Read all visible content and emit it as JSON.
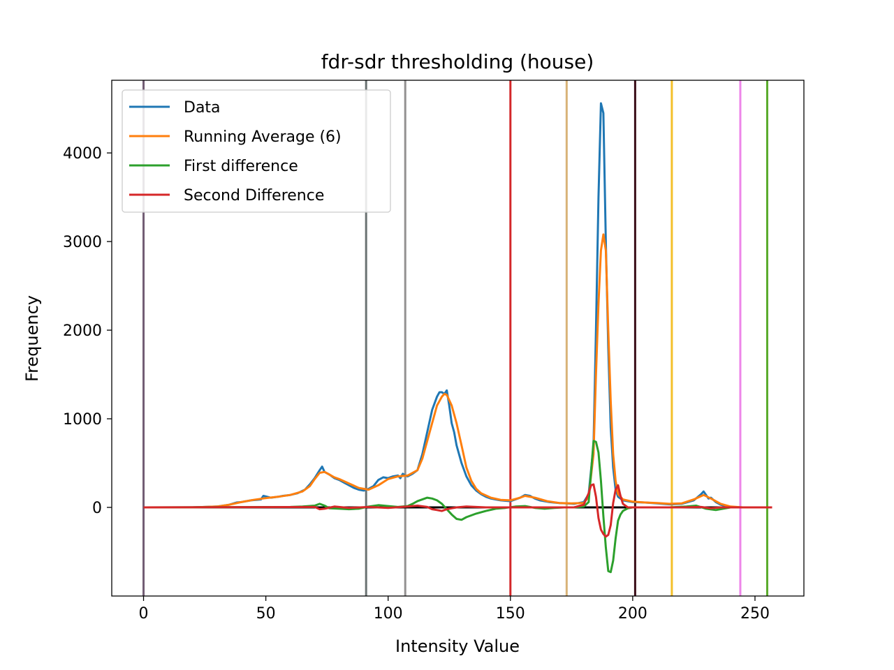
{
  "chart_data": {
    "type": "line",
    "title": "fdr-sdr thresholding (house)",
    "xlabel": "Intensity Value",
    "ylabel": "Frequency",
    "xlim": [
      -13,
      270
    ],
    "ylim": [
      -1000,
      4820
    ],
    "xticks": [
      0,
      50,
      100,
      150,
      200,
      250
    ],
    "yticks": [
      0,
      1000,
      2000,
      3000,
      4000
    ],
    "grid": false,
    "legend_position": "top-left",
    "series": [
      {
        "name": "Data",
        "color": "#1f77b4",
        "points": [
          [
            0,
            0
          ],
          [
            20,
            0
          ],
          [
            30,
            10
          ],
          [
            35,
            30
          ],
          [
            38,
            55
          ],
          [
            40,
            60
          ],
          [
            44,
            80
          ],
          [
            48,
            90
          ],
          [
            49,
            130
          ],
          [
            52,
            110
          ],
          [
            55,
            120
          ],
          [
            57,
            130
          ],
          [
            60,
            140
          ],
          [
            63,
            160
          ],
          [
            66,
            200
          ],
          [
            68,
            260
          ],
          [
            70,
            330
          ],
          [
            72,
            420
          ],
          [
            73,
            460
          ],
          [
            74,
            400
          ],
          [
            76,
            370
          ],
          [
            78,
            330
          ],
          [
            80,
            310
          ],
          [
            82,
            280
          ],
          [
            84,
            250
          ],
          [
            86,
            220
          ],
          [
            88,
            200
          ],
          [
            90,
            190
          ],
          [
            92,
            210
          ],
          [
            94,
            240
          ],
          [
            96,
            310
          ],
          [
            98,
            340
          ],
          [
            100,
            330
          ],
          [
            102,
            350
          ],
          [
            104,
            360
          ],
          [
            105,
            330
          ],
          [
            106,
            380
          ],
          [
            107,
            360
          ],
          [
            108,
            350
          ],
          [
            110,
            380
          ],
          [
            112,
            420
          ],
          [
            114,
            600
          ],
          [
            116,
            850
          ],
          [
            118,
            1100
          ],
          [
            120,
            1250
          ],
          [
            121,
            1300
          ],
          [
            122,
            1300
          ],
          [
            123,
            1280
          ],
          [
            124,
            1320
          ],
          [
            125,
            1150
          ],
          [
            126,
            950
          ],
          [
            127,
            850
          ],
          [
            128,
            700
          ],
          [
            130,
            500
          ],
          [
            132,
            350
          ],
          [
            134,
            250
          ],
          [
            136,
            190
          ],
          [
            138,
            150
          ],
          [
            140,
            120
          ],
          [
            142,
            100
          ],
          [
            144,
            90
          ],
          [
            146,
            80
          ],
          [
            148,
            75
          ],
          [
            150,
            70
          ],
          [
            152,
            90
          ],
          [
            154,
            110
          ],
          [
            156,
            140
          ],
          [
            158,
            130
          ],
          [
            160,
            100
          ],
          [
            162,
            80
          ],
          [
            166,
            60
          ],
          [
            170,
            50
          ],
          [
            173,
            45
          ],
          [
            176,
            40
          ],
          [
            178,
            50
          ],
          [
            180,
            60
          ],
          [
            182,
            150
          ],
          [
            184,
            700
          ],
          [
            185,
            2000
          ],
          [
            186,
            3500
          ],
          [
            187,
            4560
          ],
          [
            188,
            4450
          ],
          [
            189,
            3000
          ],
          [
            190,
            1800
          ],
          [
            191,
            900
          ],
          [
            192,
            450
          ],
          [
            193,
            200
          ],
          [
            194,
            120
          ],
          [
            196,
            80
          ],
          [
            200,
            60
          ],
          [
            205,
            55
          ],
          [
            210,
            45
          ],
          [
            215,
            35
          ],
          [
            220,
            40
          ],
          [
            225,
            80
          ],
          [
            228,
            150
          ],
          [
            229,
            180
          ],
          [
            231,
            100
          ],
          [
            232,
            110
          ],
          [
            234,
            60
          ],
          [
            236,
            30
          ],
          [
            238,
            15
          ],
          [
            240,
            5
          ],
          [
            245,
            0
          ],
          [
            255,
            0
          ]
        ]
      },
      {
        "name": "Running Average (6)",
        "color": "#ff7f0e",
        "points": [
          [
            0,
            0
          ],
          [
            20,
            0
          ],
          [
            30,
            10
          ],
          [
            35,
            30
          ],
          [
            40,
            60
          ],
          [
            45,
            85
          ],
          [
            50,
            105
          ],
          [
            55,
            120
          ],
          [
            60,
            140
          ],
          [
            65,
            180
          ],
          [
            68,
            240
          ],
          [
            70,
            320
          ],
          [
            72,
            390
          ],
          [
            74,
            400
          ],
          [
            76,
            370
          ],
          [
            78,
            340
          ],
          [
            80,
            320
          ],
          [
            84,
            270
          ],
          [
            88,
            220
          ],
          [
            92,
            200
          ],
          [
            96,
            250
          ],
          [
            100,
            320
          ],
          [
            104,
            350
          ],
          [
            108,
            360
          ],
          [
            112,
            420
          ],
          [
            114,
            550
          ],
          [
            116,
            750
          ],
          [
            118,
            950
          ],
          [
            120,
            1150
          ],
          [
            122,
            1250
          ],
          [
            123,
            1280
          ],
          [
            124,
            1270
          ],
          [
            126,
            1150
          ],
          [
            128,
            950
          ],
          [
            130,
            700
          ],
          [
            132,
            450
          ],
          [
            134,
            300
          ],
          [
            136,
            210
          ],
          [
            138,
            160
          ],
          [
            142,
            110
          ],
          [
            146,
            85
          ],
          [
            150,
            80
          ],
          [
            154,
            110
          ],
          [
            156,
            130
          ],
          [
            160,
            110
          ],
          [
            165,
            70
          ],
          [
            170,
            50
          ],
          [
            175,
            45
          ],
          [
            180,
            50
          ],
          [
            182,
            120
          ],
          [
            184,
            600
          ],
          [
            185,
            1500
          ],
          [
            186,
            2300
          ],
          [
            187,
            2900
          ],
          [
            188,
            3080
          ],
          [
            189,
            2900
          ],
          [
            190,
            2000
          ],
          [
            191,
            1200
          ],
          [
            192,
            600
          ],
          [
            193,
            300
          ],
          [
            194,
            150
          ],
          [
            196,
            90
          ],
          [
            200,
            65
          ],
          [
            205,
            55
          ],
          [
            210,
            50
          ],
          [
            215,
            40
          ],
          [
            220,
            45
          ],
          [
            225,
            90
          ],
          [
            229,
            140
          ],
          [
            232,
            100
          ],
          [
            236,
            40
          ],
          [
            240,
            10
          ],
          [
            245,
            0
          ],
          [
            255,
            0
          ]
        ]
      },
      {
        "name": "First difference",
        "color": "#2ca02c",
        "points": [
          [
            0,
            0
          ],
          [
            60,
            5
          ],
          [
            65,
            10
          ],
          [
            70,
            20
          ],
          [
            72,
            40
          ],
          [
            74,
            20
          ],
          [
            76,
            -10
          ],
          [
            80,
            -15
          ],
          [
            84,
            -20
          ],
          [
            88,
            -15
          ],
          [
            92,
            10
          ],
          [
            96,
            25
          ],
          [
            100,
            15
          ],
          [
            104,
            5
          ],
          [
            108,
            15
          ],
          [
            110,
            40
          ],
          [
            112,
            70
          ],
          [
            114,
            90
          ],
          [
            116,
            110
          ],
          [
            118,
            100
          ],
          [
            120,
            80
          ],
          [
            122,
            40
          ],
          [
            124,
            -20
          ],
          [
            126,
            -80
          ],
          [
            128,
            -130
          ],
          [
            130,
            -140
          ],
          [
            132,
            -110
          ],
          [
            136,
            -70
          ],
          [
            140,
            -40
          ],
          [
            144,
            -15
          ],
          [
            148,
            -5
          ],
          [
            152,
            10
          ],
          [
            156,
            15
          ],
          [
            160,
            -5
          ],
          [
            164,
            -15
          ],
          [
            168,
            -5
          ],
          [
            172,
            0
          ],
          [
            176,
            0
          ],
          [
            180,
            10
          ],
          [
            182,
            60
          ],
          [
            183,
            400
          ],
          [
            184,
            750
          ],
          [
            185,
            740
          ],
          [
            186,
            620
          ],
          [
            187,
            300
          ],
          [
            188,
            -100
          ],
          [
            189,
            -450
          ],
          [
            190,
            -720
          ],
          [
            191,
            -730
          ],
          [
            192,
            -600
          ],
          [
            193,
            -350
          ],
          [
            194,
            -150
          ],
          [
            195,
            -80
          ],
          [
            196,
            -40
          ],
          [
            198,
            -10
          ],
          [
            200,
            0
          ],
          [
            215,
            0
          ],
          [
            222,
            10
          ],
          [
            226,
            20
          ],
          [
            230,
            -15
          ],
          [
            234,
            -30
          ],
          [
            238,
            -10
          ],
          [
            240,
            0
          ],
          [
            255,
            0
          ]
        ]
      },
      {
        "name": "Second Difference",
        "color": "#d62728",
        "points": [
          [
            0,
            0
          ],
          [
            70,
            5
          ],
          [
            72,
            -20
          ],
          [
            74,
            -15
          ],
          [
            78,
            10
          ],
          [
            84,
            -5
          ],
          [
            92,
            5
          ],
          [
            100,
            -5
          ],
          [
            108,
            10
          ],
          [
            112,
            20
          ],
          [
            116,
            5
          ],
          [
            118,
            -20
          ],
          [
            120,
            -30
          ],
          [
            122,
            -40
          ],
          [
            124,
            -20
          ],
          [
            126,
            -10
          ],
          [
            128,
            0
          ],
          [
            132,
            10
          ],
          [
            136,
            5
          ],
          [
            140,
            0
          ],
          [
            176,
            0
          ],
          [
            180,
            30
          ],
          [
            182,
            160
          ],
          [
            183,
            250
          ],
          [
            184,
            260
          ],
          [
            185,
            120
          ],
          [
            186,
            -120
          ],
          [
            187,
            -250
          ],
          [
            188,
            -300
          ],
          [
            189,
            -330
          ],
          [
            190,
            -310
          ],
          [
            191,
            -200
          ],
          [
            192,
            50
          ],
          [
            193,
            200
          ],
          [
            194,
            250
          ],
          [
            195,
            130
          ],
          [
            196,
            40
          ],
          [
            198,
            0
          ],
          [
            220,
            0
          ],
          [
            228,
            5
          ],
          [
            232,
            -10
          ],
          [
            236,
            0
          ],
          [
            257,
            0
          ]
        ]
      }
    ],
    "zero_line": {
      "color": "#000000",
      "from": 0,
      "to": 257
    },
    "thresholds": [
      {
        "x": 0,
        "color": "#725d74"
      },
      {
        "x": 91,
        "color": "#6b7373"
      },
      {
        "x": 107,
        "color": "#939191"
      },
      {
        "x": 150,
        "color": "#d3282b"
      },
      {
        "x": 173,
        "color": "#d8b378"
      },
      {
        "x": 201,
        "color": "#3a0d17"
      },
      {
        "x": 216,
        "color": "#f4c02a"
      },
      {
        "x": 244,
        "color": "#ee86e9"
      },
      {
        "x": 255,
        "color": "#5aab2c"
      }
    ]
  }
}
